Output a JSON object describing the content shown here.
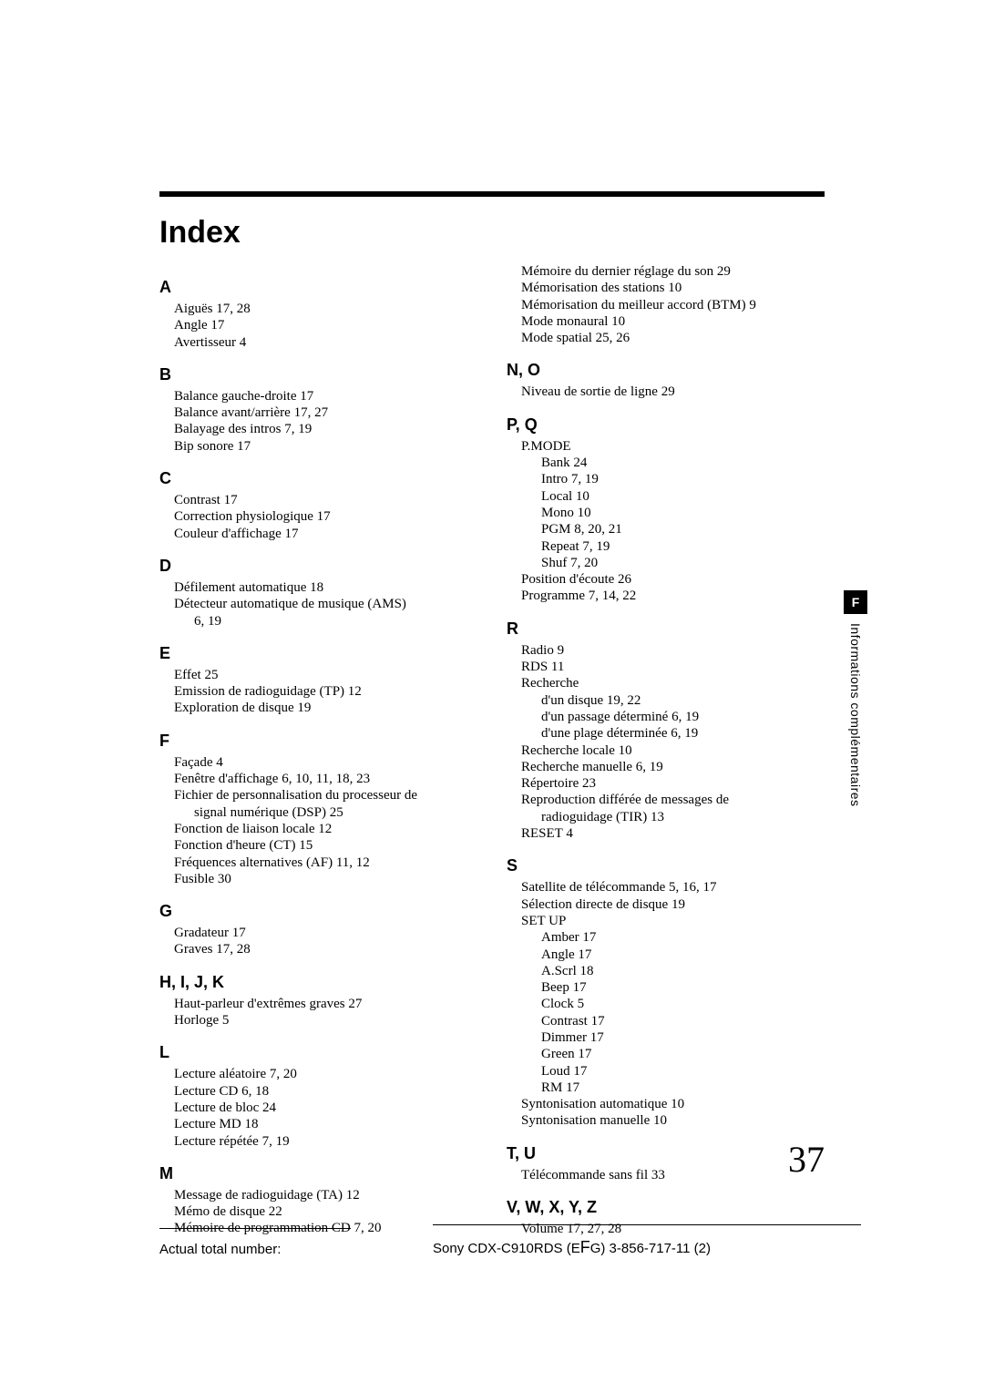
{
  "title": "Index",
  "page_number": "37",
  "side_tab": {
    "letter": "F",
    "label": "Informations complémentaires"
  },
  "footer": {
    "left": "Actual total number:",
    "right_prefix": "Sony CDX-C910RDS (E",
    "right_mid": "F",
    "right_suffix": "G)  3-856-717-11 (2)"
  },
  "left_sections": [
    {
      "head": "A",
      "entries": [
        {
          "t": "Aiguës    17, 28"
        },
        {
          "t": "Angle    17"
        },
        {
          "t": "Avertisseur    4"
        }
      ]
    },
    {
      "head": "B",
      "entries": [
        {
          "t": "Balance gauche-droite    17"
        },
        {
          "t": "Balance avant/arrière    17, 27"
        },
        {
          "t": "Balayage des intros    7, 19"
        },
        {
          "t": "Bip sonore    17"
        }
      ]
    },
    {
      "head": "C",
      "entries": [
        {
          "t": "Contrast    17"
        },
        {
          "t": "Correction physiologique    17"
        },
        {
          "t": "Couleur d'affichage    17"
        }
      ]
    },
    {
      "head": "D",
      "entries": [
        {
          "t": "Défilement automatique    18"
        },
        {
          "t": "Détecteur automatique de musique (AMS)"
        },
        {
          "t": "6, 19",
          "sub": true
        }
      ]
    },
    {
      "head": "E",
      "entries": [
        {
          "t": "Effet    25"
        },
        {
          "t": "Emission de radioguidage (TP)    12"
        },
        {
          "t": "Exploration de disque    19"
        }
      ]
    },
    {
      "head": "F",
      "entries": [
        {
          "t": "Façade    4"
        },
        {
          "t": "Fenêtre d'affichage    6, 10, 11, 18, 23"
        },
        {
          "t": "Fichier de personnalisation du processeur de"
        },
        {
          "t": "signal numérique (DSP)    25",
          "sub": true
        },
        {
          "t": "Fonction de liaison locale    12"
        },
        {
          "t": "Fonction d'heure (CT)    15"
        },
        {
          "t": "Fréquences alternatives (AF)    11, 12"
        },
        {
          "t": "Fusible    30"
        }
      ]
    },
    {
      "head": "G",
      "entries": [
        {
          "t": "Gradateur    17"
        },
        {
          "t": "Graves    17, 28"
        }
      ]
    },
    {
      "head": "H, I, J, K",
      "entries": [
        {
          "t": "Haut-parleur d'extrêmes graves    27"
        },
        {
          "t": "Horloge    5"
        }
      ]
    },
    {
      "head": "L",
      "entries": [
        {
          "t": "Lecture aléatoire    7, 20"
        },
        {
          "t": "Lecture CD    6, 18"
        },
        {
          "t": "Lecture de bloc    24"
        },
        {
          "t": "Lecture MD    18"
        },
        {
          "t": "Lecture répétée    7, 19"
        }
      ]
    },
    {
      "head": "M",
      "entries": [
        {
          "t": "Message de radioguidage (TA)    12"
        },
        {
          "t": "Mémo de disque    22"
        },
        {
          "t": "Mémoire de programmation CD    7, 20"
        }
      ]
    }
  ],
  "right_sections": [
    {
      "head": "",
      "entries": [
        {
          "t": "Mémoire du dernier réglage du son    29"
        },
        {
          "t": "Mémorisation des stations    10"
        },
        {
          "t": "Mémorisation du meilleur accord (BTM)    9"
        },
        {
          "t": "Mode monaural    10"
        },
        {
          "t": "Mode spatial    25, 26"
        }
      ]
    },
    {
      "head": "N, O",
      "entries": [
        {
          "t": "Niveau de sortie de ligne    29"
        }
      ]
    },
    {
      "head": "P, Q",
      "entries": [
        {
          "t": "P.MODE"
        },
        {
          "t": "Bank    24",
          "sub": true
        },
        {
          "t": "Intro    7, 19",
          "sub": true
        },
        {
          "t": "Local    10",
          "sub": true
        },
        {
          "t": "Mono    10",
          "sub": true
        },
        {
          "t": "PGM    8, 20, 21",
          "sub": true
        },
        {
          "t": "Repeat    7, 19",
          "sub": true
        },
        {
          "t": "Shuf    7, 20",
          "sub": true
        },
        {
          "t": "Position d'écoute    26"
        },
        {
          "t": "Programme    7, 14, 22"
        }
      ]
    },
    {
      "head": "R",
      "entries": [
        {
          "t": "Radio    9"
        },
        {
          "t": "RDS    11"
        },
        {
          "t": "Recherche"
        },
        {
          "t": "d'un disque    19, 22",
          "sub": true
        },
        {
          "t": "d'un passage déterminé    6, 19",
          "sub": true
        },
        {
          "t": "d'une plage déterminée    6, 19",
          "sub": true
        },
        {
          "t": "Recherche locale    10"
        },
        {
          "t": "Recherche manuelle    6, 19"
        },
        {
          "t": "Répertoire    23"
        },
        {
          "t": "Reproduction différée de messages de"
        },
        {
          "t": "radioguidage (TIR)    13",
          "sub": true
        },
        {
          "t": "RESET    4"
        }
      ]
    },
    {
      "head": "S",
      "entries": [
        {
          "t": "Satellite de télécommande    5, 16, 17"
        },
        {
          "t": "Sélection directe de disque    19"
        },
        {
          "t": "SET UP"
        },
        {
          "t": "Amber    17",
          "sub": true
        },
        {
          "t": "Angle    17",
          "sub": true
        },
        {
          "t": "A.Scrl    18",
          "sub": true
        },
        {
          "t": "Beep    17",
          "sub": true
        },
        {
          "t": "Clock    5",
          "sub": true
        },
        {
          "t": "Contrast    17",
          "sub": true
        },
        {
          "t": "Dimmer    17",
          "sub": true
        },
        {
          "t": "Green    17",
          "sub": true
        },
        {
          "t": "Loud    17",
          "sub": true
        },
        {
          "t": "RM    17",
          "sub": true
        },
        {
          "t": "Syntonisation automatique    10"
        },
        {
          "t": "Syntonisation manuelle    10"
        }
      ]
    },
    {
      "head": "T, U",
      "entries": [
        {
          "t": "Télécommande sans fil    33"
        }
      ]
    },
    {
      "head": "V, W, X, Y, Z",
      "entries": [
        {
          "t": "Volume    17, 27, 28"
        }
      ]
    }
  ]
}
